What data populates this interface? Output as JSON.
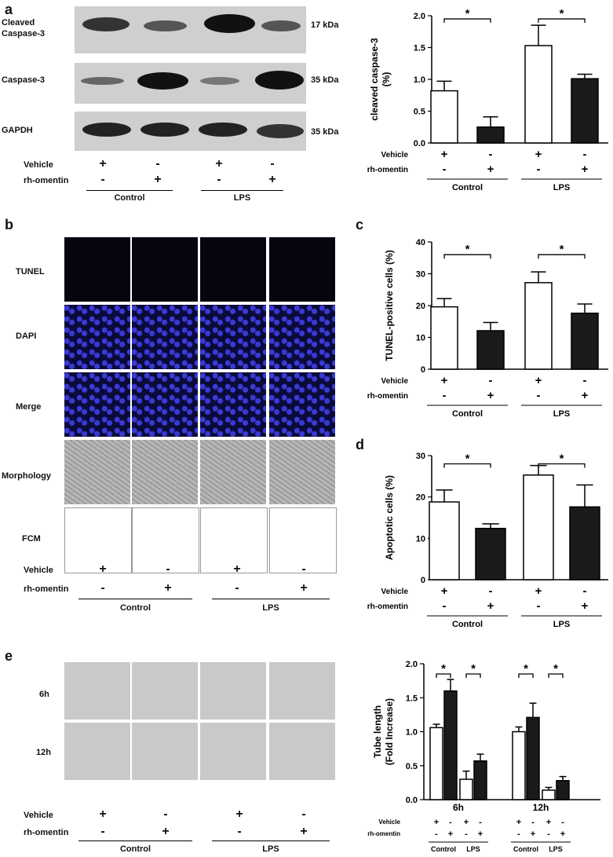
{
  "panels": {
    "a": "a",
    "b": "b",
    "c": "c",
    "d": "d",
    "e": "e"
  },
  "blot": {
    "rows": [
      {
        "label": "Cleaved\nCaspase-3",
        "kda": "17  kDa"
      },
      {
        "label": "Caspase-3",
        "kda": "35 kDa"
      },
      {
        "label": "GAPDH",
        "kda": "35 kDa"
      }
    ]
  },
  "imaging": {
    "rows": [
      "TUNEL",
      "DAPI",
      "Merge",
      "Morphology",
      "FCM"
    ]
  },
  "tube_imaging": {
    "rows": [
      "6h",
      "12h"
    ]
  },
  "treatments": {
    "vehicle_label": "Vehicle",
    "omentin_label": "rh-omentin",
    "vehicle": [
      "+",
      "-",
      "+",
      "-"
    ],
    "omentin": [
      "-",
      "+",
      "-",
      "+"
    ],
    "groups": [
      "Control",
      "LPS"
    ]
  },
  "sig_marker": "*",
  "chart_data": [
    {
      "type": "bar",
      "id": "a",
      "ylabel": "cleaved caspase-3\n(%)",
      "ylim": [
        0,
        2.0
      ],
      "yticks": [
        "0.0",
        "0.5",
        "1.0",
        "1.5",
        "2.0"
      ],
      "values": [
        0.82,
        0.25,
        1.53,
        1.01
      ],
      "errors": [
        0.15,
        0.16,
        0.32,
        0.07
      ],
      "fills": [
        "#ffffff",
        "#1a1a1a",
        "#ffffff",
        "#1a1a1a"
      ]
    },
    {
      "type": "bar",
      "id": "c",
      "ylabel": "TUNEL-positive cells (%)",
      "ylim": [
        0,
        40
      ],
      "yticks": [
        "0",
        "10",
        "20",
        "30",
        "40"
      ],
      "values": [
        19.6,
        12.1,
        27.2,
        17.6
      ],
      "errors": [
        2.6,
        2.6,
        3.4,
        2.9
      ],
      "fills": [
        "#ffffff",
        "#1a1a1a",
        "#ffffff",
        "#1a1a1a"
      ]
    },
    {
      "type": "bar",
      "id": "d",
      "ylabel": "Apoptotic cells (%)",
      "ylim": [
        0,
        30
      ],
      "yticks": [
        "0",
        "10",
        "20",
        "30"
      ],
      "values": [
        18.8,
        12.4,
        25.3,
        17.6
      ],
      "errors": [
        2.9,
        1.1,
        2.3,
        5.3
      ],
      "fills": [
        "#ffffff",
        "#1a1a1a",
        "#ffffff",
        "#1a1a1a"
      ]
    },
    {
      "type": "bar",
      "id": "e",
      "ylabel": "Tube length\n(Fold Increase)",
      "ylim": [
        0,
        2.0
      ],
      "yticks": [
        "0.0",
        "0.5",
        "1.0",
        "1.5",
        "2.0"
      ],
      "timepoints": [
        "6h",
        "12h"
      ],
      "values": [
        1.06,
        1.6,
        0.3,
        0.57,
        1.0,
        1.21,
        0.14,
        0.28
      ],
      "errors": [
        0.05,
        0.17,
        0.12,
        0.1,
        0.07,
        0.21,
        0.04,
        0.06
      ],
      "fills": [
        "#ffffff",
        "#1a1a1a",
        "#ffffff",
        "#1a1a1a",
        "#ffffff",
        "#1a1a1a",
        "#ffffff",
        "#1a1a1a"
      ]
    }
  ]
}
